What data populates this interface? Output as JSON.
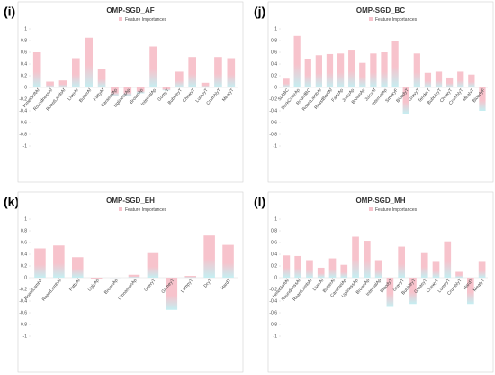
{
  "chart_data": [
    {
      "type": "bar",
      "panel": "(i)",
      "title": "OMP-SGD_AF",
      "colors": [
        "#f7c3cc",
        "#c4eff2"
      ],
      "ylim": [
        -1,
        1
      ],
      "yticks": [
        1,
        0.8,
        0.6,
        0.4,
        0.2,
        0,
        -0.2,
        -0.4,
        -0.6,
        -0.8,
        -1
      ],
      "categories": [
        "HmetSoftAf",
        "RoundnessAf",
        "RoastLambAf",
        "LiverAf",
        "ButterAf",
        "FattyAf",
        "CaramelAp",
        "UglinessAp",
        "BrownAp",
        "InternalAp",
        "GumyT",
        "BubbleyT",
        "ChewyT",
        "LumpyT",
        "CrumblyT",
        "MeatyT"
      ],
      "series": [
        {
          "name": "Feature Importances",
          "values": [
            0.6,
            0.1,
            0.12,
            0.5,
            0.85,
            0.32,
            -0.15,
            -0.15,
            -0.1,
            0.7,
            -0.05,
            0.27,
            0.52,
            0.08,
            0.52,
            0.5
          ]
        }
      ]
    },
    {
      "type": "bar",
      "panel": "(j)",
      "title": "OMP-SGD_BC",
      "colors": [
        "#f7c3cc",
        "#c4eff2"
      ],
      "ylim": [
        -1,
        1
      ],
      "yticks": [
        1,
        0.8,
        0.6,
        0.4,
        0.2,
        0,
        -0.2,
        -0.4,
        -0.6,
        -0.8,
        -1
      ],
      "categories": [
        "SoftBC",
        "DarkColorAp",
        "RoundBC",
        "RoastLambAf",
        "RoastBeefAf",
        "FattyAp",
        "JuicyAp",
        "BrownAp",
        "JuicyAf",
        "InternalAp",
        "SmokyF",
        "BloodyT",
        "GravyT",
        "TenderT",
        "BubbleyT",
        "ChewyT",
        "CrumblyT",
        "MealyT",
        "BloodyF"
      ],
      "series": [
        {
          "name": "Feature Importances",
          "values": [
            0.15,
            0.88,
            0.48,
            0.55,
            0.57,
            0.58,
            0.63,
            0.42,
            0.58,
            0.6,
            0.8,
            -0.45,
            0.58,
            0.25,
            0.27,
            0.17,
            0.27,
            0.22,
            -0.4
          ]
        }
      ]
    },
    {
      "type": "bar",
      "panel": "(k)",
      "title": "OMP-SGD_EH",
      "colors": [
        "#f7c3cc",
        "#c4eff2"
      ],
      "ylim": [
        -1,
        1
      ],
      "yticks": [
        1,
        0.8,
        0.6,
        0.4,
        0.2,
        0,
        -0.2,
        -0.4,
        -0.6,
        -0.8,
        -1
      ],
      "categories": [
        "RoastLambF",
        "RoastLambAf",
        "FattyAf",
        "UglyAp",
        "BrownAp",
        "CinnamonAp",
        "GravyT",
        "GameyT",
        "LumpyT",
        "DryT",
        "HardT"
      ],
      "series": [
        {
          "name": "Feature Importances",
          "values": [
            0.5,
            0.55,
            0.35,
            -0.02,
            0,
            0.05,
            0.42,
            -0.55,
            0.03,
            0.72,
            0.56
          ]
        }
      ]
    },
    {
      "type": "bar",
      "panel": "(l)",
      "title": "OMP-SGD_MH",
      "colors": [
        "#f7c3cc",
        "#c4eff2"
      ],
      "ylim": [
        -1,
        1
      ],
      "yticks": [
        1,
        0.8,
        0.6,
        0.4,
        0.2,
        0,
        -0.2,
        -0.4,
        -0.6,
        -0.8,
        -1
      ],
      "categories": [
        "HmetSoftAf",
        "RoundnessAf",
        "RoastLambAf",
        "LiverAf",
        "ButterAf",
        "CaramelAp",
        "UglinessAp",
        "BrownAp",
        "InternalAp",
        "BloodyT",
        "GravyT",
        "BubbleyT",
        "GreasyT",
        "ChewyT",
        "LumpyT",
        "CrumblyT",
        "HardT",
        "MeatyT"
      ],
      "series": [
        {
          "name": "Feature Importances",
          "values": [
            0.38,
            0.37,
            0.3,
            0.17,
            0.33,
            0.22,
            0.7,
            0.63,
            0.3,
            -0.5,
            0.53,
            -0.45,
            0.42,
            0.27,
            0.62,
            0.1,
            -0.45,
            0.27
          ]
        }
      ]
    }
  ]
}
